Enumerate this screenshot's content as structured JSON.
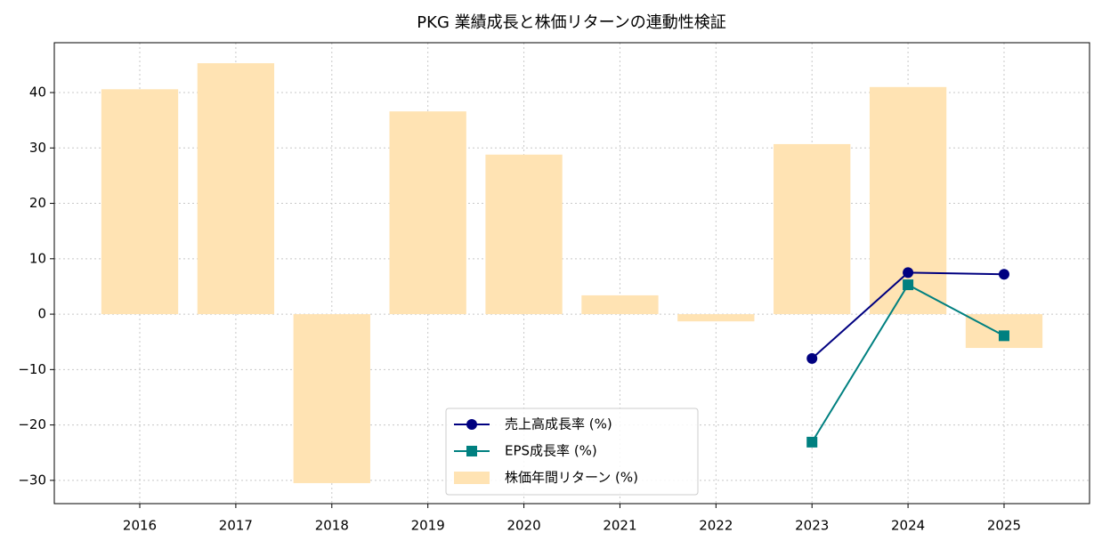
{
  "chart_data": {
    "type": "bar",
    "title": "PKG 業績成長と株価リターンの連動性検証",
    "categories": [
      "2016",
      "2017",
      "2018",
      "2019",
      "2020",
      "2021",
      "2022",
      "2023",
      "2024",
      "2025"
    ],
    "series": [
      {
        "name": "売上高成長率 (%)",
        "type": "line",
        "marker": "circle",
        "color": "#000080",
        "values": [
          null,
          null,
          null,
          null,
          null,
          null,
          null,
          -8.0,
          7.5,
          7.2
        ]
      },
      {
        "name": "EPS成長率 (%)",
        "type": "line",
        "marker": "square",
        "color": "#008080",
        "values": [
          null,
          null,
          null,
          null,
          null,
          null,
          null,
          -23.1,
          5.3,
          -3.9
        ]
      },
      {
        "name": "株価年間リターン (%)",
        "type": "bar",
        "color": "#ffe3b3",
        "values": [
          40.6,
          45.3,
          -30.5,
          36.6,
          28.8,
          3.4,
          -1.3,
          30.7,
          41.0,
          -6.1
        ]
      }
    ],
    "ylim": [
      -34.2,
      49.0
    ],
    "yticks": [
      {
        "value": -30,
        "label": "−30"
      },
      {
        "value": -20,
        "label": "−20"
      },
      {
        "value": -10,
        "label": "−10"
      },
      0,
      10,
      20,
      30,
      40
    ],
    "grid": true,
    "legend": "lower center"
  }
}
